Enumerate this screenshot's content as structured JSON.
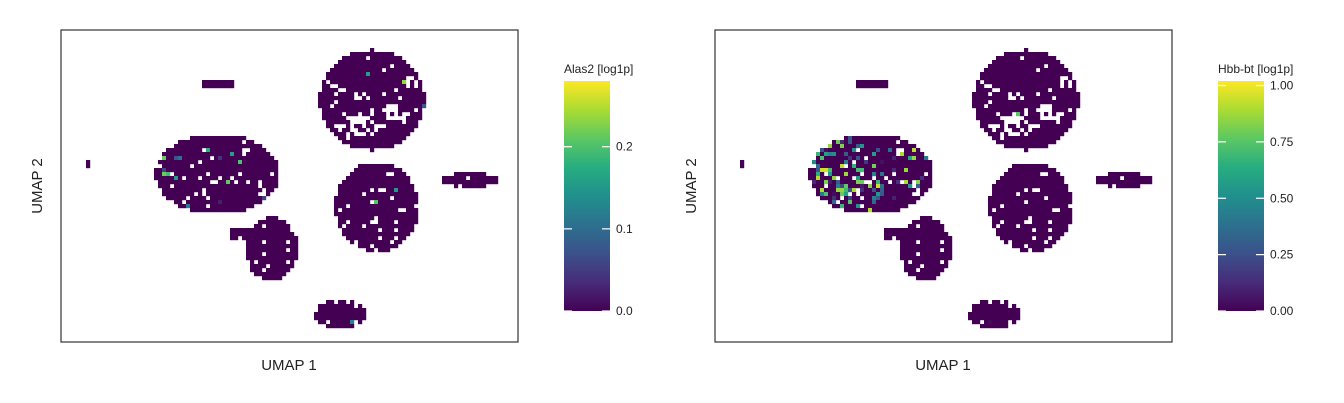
{
  "chart_data": [
    {
      "type": "heatmap",
      "subtype": "umap-hexbin",
      "xlabel": "UMAP 1",
      "ylabel": "UMAP 2",
      "grid": false,
      "legend_placement": "right",
      "colorbar": {
        "title": "Alas2 [log1p]",
        "colormap": "viridis",
        "range": [
          0,
          0.28
        ],
        "ticks": [
          0.0,
          0.1,
          0.2
        ],
        "tick_labels": [
          "0.0",
          "0.1",
          "0.2"
        ]
      }
    },
    {
      "type": "heatmap",
      "subtype": "umap-hexbin",
      "xlabel": "UMAP 1",
      "ylabel": "UMAP 2",
      "grid": false,
      "legend_placement": "right",
      "colorbar": {
        "title": "Hbb-bt [log1p]",
        "colormap": "viridis",
        "range": [
          0,
          1.02
        ],
        "ticks": [
          0.0,
          0.25,
          0.5,
          0.75,
          1.0
        ],
        "tick_labels": [
          "0.00",
          "0.25",
          "0.50",
          "0.75",
          "1.00"
        ]
      }
    }
  ],
  "colors": {
    "base_cell": "#440154",
    "frame": "#333333"
  }
}
